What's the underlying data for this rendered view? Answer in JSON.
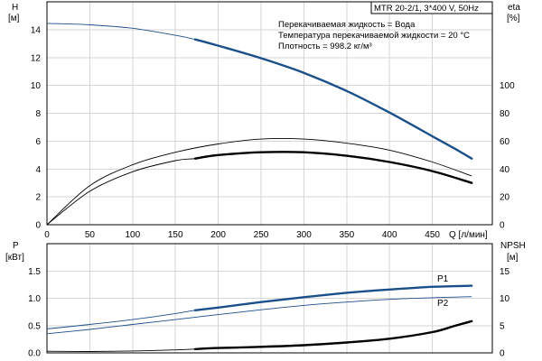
{
  "chart_data": [
    {
      "type": "line",
      "panel": "head-efficiency",
      "title": "MTR 20-2/1, 3*400 V, 50Hz",
      "annotations": [
        "Перекачиваемая жидкость = Вода",
        "Температура перекачиваемой жидкости = 20 °C",
        "Плотность = 998.2 кг/м³"
      ],
      "xlabel": "Q [л/мин]",
      "ylabel_left": [
        "H",
        "[м]"
      ],
      "ylabel_right": [
        "eta",
        "[%]"
      ],
      "xlim": [
        0,
        520
      ],
      "ylim_left": [
        0,
        16
      ],
      "ylim_right": [
        0,
        160
      ],
      "x_ticks": [
        0,
        50,
        100,
        150,
        200,
        250,
        300,
        350,
        400,
        450
      ],
      "y_ticks_left": [
        0,
        2,
        4,
        6,
        8,
        10,
        12,
        14
      ],
      "y_ticks_right": [
        0,
        20,
        40,
        60,
        80,
        100
      ],
      "grid": true,
      "series": [
        {
          "axis": "left",
          "color": "#1b4f8a",
          "x": [
            0,
            50,
            100,
            150,
            173,
            200,
            250,
            300,
            350,
            400,
            450,
            475,
            496
          ],
          "y": [
            14.45,
            14.35,
            14.1,
            13.6,
            13.3,
            12.85,
            11.95,
            10.9,
            9.6,
            8.05,
            6.35,
            5.5,
            4.75
          ],
          "bold_from_x": 173
        },
        {
          "axis": "right",
          "color": "#000000",
          "x": [
            0,
            50,
            100,
            150,
            200,
            250,
            300,
            350,
            400,
            450,
            496
          ],
          "y": [
            0,
            28,
            43,
            52,
            58,
            61.5,
            61.5,
            58.5,
            53.5,
            45,
            35
          ]
        },
        {
          "axis": "right",
          "color": "#000000",
          "x": [
            0,
            50,
            100,
            150,
            173,
            200,
            250,
            300,
            350,
            400,
            450,
            496
          ],
          "y": [
            0,
            24,
            38,
            46,
            47.5,
            50,
            52,
            52,
            49.5,
            45,
            38.5,
            30
          ],
          "bold_from_x": 173
        }
      ]
    },
    {
      "type": "line",
      "panel": "power-npsh",
      "ylabel_left": [
        "P",
        "[кВт]"
      ],
      "ylabel_right": [
        "NPSH",
        "[м]"
      ],
      "xlim": [
        0,
        520
      ],
      "ylim_left": [
        0,
        2
      ],
      "ylim_right": [
        0,
        20
      ],
      "y_ticks_left": [
        0,
        0.5,
        1,
        1.5
      ],
      "y_tick_labels_left": [
        "0.0",
        "0.5",
        "1.0",
        "1.5"
      ],
      "y_ticks_right": [
        0,
        5,
        10,
        15
      ],
      "grid": true,
      "series": [
        {
          "name": "P1",
          "axis": "left",
          "color": "#1b4f8a",
          "x": [
            0,
            50,
            100,
            150,
            173,
            200,
            250,
            300,
            350,
            400,
            450,
            496
          ],
          "y": [
            0.44,
            0.52,
            0.61,
            0.72,
            0.78,
            0.83,
            0.93,
            1.02,
            1.1,
            1.16,
            1.21,
            1.23
          ],
          "bold_from_x": 173
        },
        {
          "name": "P2",
          "axis": "left",
          "color": "#1b4f8a",
          "x": [
            0,
            50,
            100,
            150,
            200,
            250,
            300,
            350,
            400,
            450,
            496
          ],
          "y": [
            0.35,
            0.43,
            0.52,
            0.61,
            0.7,
            0.79,
            0.87,
            0.93,
            0.98,
            1.01,
            1.03
          ]
        },
        {
          "axis": "right",
          "color": "#000000",
          "x": [
            0,
            50,
            100,
            150,
            173,
            200,
            250,
            300,
            350,
            400,
            450,
            475,
            496
          ],
          "y": [
            0.3,
            0.25,
            0.35,
            0.55,
            0.7,
            0.9,
            1.1,
            1.4,
            1.9,
            2.6,
            3.8,
            4.9,
            5.8
          ],
          "bold_from_x": 173
        }
      ]
    }
  ]
}
